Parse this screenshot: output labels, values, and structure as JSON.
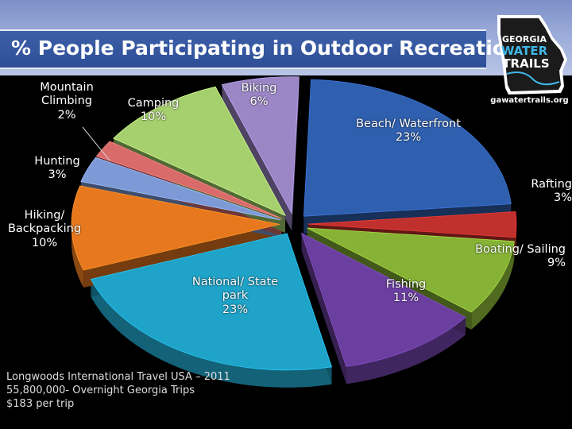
{
  "title": "% People Participating in Outdoor Recreation",
  "logo": {
    "line1": "GEORGIA",
    "line2": "WATER",
    "line3": "TRAILS",
    "url": "gawatertrails.org"
  },
  "chart_data": {
    "type": "pie",
    "title": "% People Participating in Outdoor Recreation",
    "slices": [
      {
        "name": "Beach/ Waterfront",
        "value": 23,
        "label": "23%",
        "color": "#2f5faf"
      },
      {
        "name": "Rafting",
        "value": 3,
        "label": "3%",
        "color": "#c0302c"
      },
      {
        "name": "Boating/ Sailing",
        "value": 9,
        "label": "9%",
        "color": "#86b236"
      },
      {
        "name": "Fishing",
        "value": 11,
        "label": "11%",
        "color": "#6b3fa0"
      },
      {
        "name": "National/ State park",
        "value": 23,
        "label": "23%",
        "color": "#1fa3c8"
      },
      {
        "name": "Hiking/ Backpacking",
        "value": 10,
        "label": "10%",
        "color": "#e8781e"
      },
      {
        "name": "Hunting",
        "value": 3,
        "label": "3%",
        "color": "#7d9ad6"
      },
      {
        "name": "Mountain Climbing",
        "value": 2,
        "label": "2%",
        "color": "#d96b6b"
      },
      {
        "name": "Camping",
        "value": 10,
        "label": "10%",
        "color": "#a6cf6e"
      },
      {
        "name": "Biking",
        "value": 6,
        "label": "6%",
        "color": "#9b86c6"
      }
    ],
    "legend": "none"
  },
  "labels": {
    "beach_name": "Beach/ Waterfront",
    "beach_pct": "23%",
    "rafting_name": "Rafting",
    "rafting_pct": "3%",
    "boating_name": "Boating/ Sailing",
    "boating_pct": "9%",
    "fishing_name": "Fishing",
    "fishing_pct": "11%",
    "park_name1": "National/ State",
    "park_name2": "park",
    "park_pct": "23%",
    "hiking_name1": "Hiking/",
    "hiking_name2": "Backpacking",
    "hiking_pct": "10%",
    "hunting_name": "Hunting",
    "hunting_pct": "3%",
    "climbing_name1": "Mountain",
    "climbing_name2": "Climbing",
    "climbing_pct": "2%",
    "camping_name": "Camping",
    "camping_pct": "10%",
    "biking_name": "Biking",
    "biking_pct": "6%"
  },
  "footnote": {
    "line1": "Longwoods International Travel USA – 2011",
    "line2": "55,800,000- Overnight Georgia Trips",
    "line3": "$183 per trip"
  }
}
